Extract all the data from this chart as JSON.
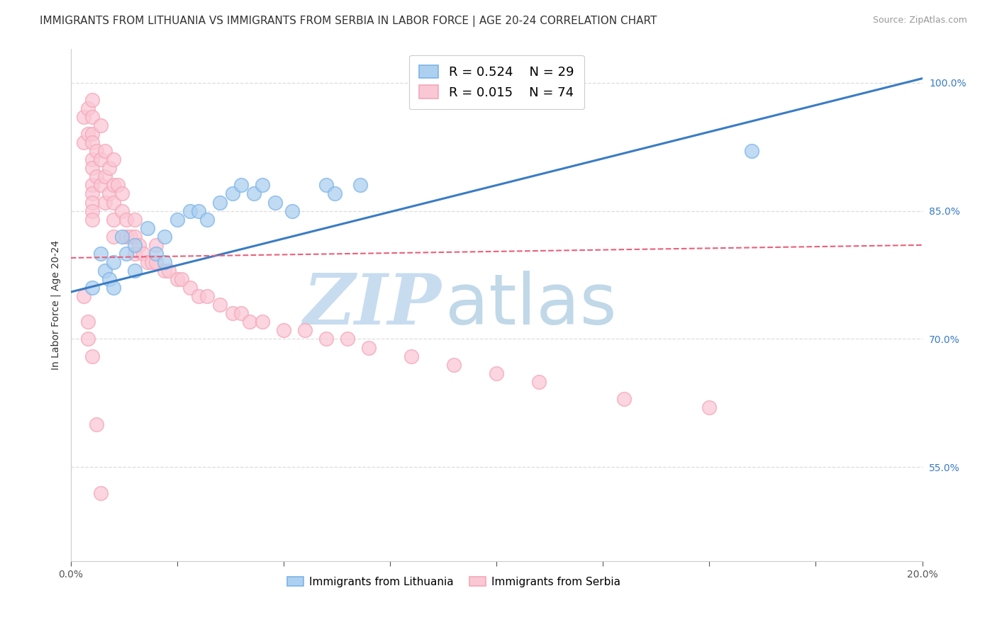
{
  "title": "IMMIGRANTS FROM LITHUANIA VS IMMIGRANTS FROM SERBIA IN LABOR FORCE | AGE 20-24 CORRELATION CHART",
  "source": "Source: ZipAtlas.com",
  "ylabel": "In Labor Force | Age 20-24",
  "xmin": 0.0,
  "xmax": 0.2,
  "ymin": 0.44,
  "ymax": 1.04,
  "yticks": [
    0.55,
    0.7,
    0.85,
    1.0
  ],
  "ytick_labels": [
    "55.0%",
    "70.0%",
    "85.0%",
    "100.0%"
  ],
  "xticks": [
    0.0,
    0.025,
    0.05,
    0.075,
    0.1,
    0.125,
    0.15,
    0.175,
    0.2
  ],
  "xtick_edge_labels": {
    "0.0": "0.0%",
    "0.20": "20.0%"
  },
  "watermark_top": "ZIP",
  "watermark_bot": "atlas",
  "legend_r_blue": "R = 0.524",
  "legend_n_blue": "N = 29",
  "legend_r_pink": "R = 0.015",
  "legend_n_pink": "N = 74",
  "blue_scatter_x": [
    0.005,
    0.007,
    0.008,
    0.009,
    0.01,
    0.01,
    0.012,
    0.013,
    0.015,
    0.015,
    0.018,
    0.02,
    0.022,
    0.022,
    0.025,
    0.028,
    0.03,
    0.032,
    0.035,
    0.038,
    0.04,
    0.043,
    0.045,
    0.048,
    0.052,
    0.06,
    0.062,
    0.068,
    0.16
  ],
  "blue_scatter_y": [
    0.76,
    0.8,
    0.78,
    0.77,
    0.79,
    0.76,
    0.82,
    0.8,
    0.81,
    0.78,
    0.83,
    0.8,
    0.82,
    0.79,
    0.84,
    0.85,
    0.85,
    0.84,
    0.86,
    0.87,
    0.88,
    0.87,
    0.88,
    0.86,
    0.85,
    0.88,
    0.87,
    0.88,
    0.92
  ],
  "pink_scatter_x": [
    0.003,
    0.003,
    0.004,
    0.004,
    0.005,
    0.005,
    0.005,
    0.005,
    0.005,
    0.005,
    0.005,
    0.005,
    0.005,
    0.005,
    0.005,
    0.006,
    0.006,
    0.007,
    0.007,
    0.007,
    0.008,
    0.008,
    0.008,
    0.009,
    0.009,
    0.01,
    0.01,
    0.01,
    0.01,
    0.01,
    0.011,
    0.012,
    0.012,
    0.013,
    0.013,
    0.014,
    0.015,
    0.015,
    0.015,
    0.016,
    0.017,
    0.018,
    0.019,
    0.02,
    0.02,
    0.022,
    0.023,
    0.025,
    0.026,
    0.028,
    0.03,
    0.032,
    0.035,
    0.038,
    0.04,
    0.042,
    0.045,
    0.05,
    0.055,
    0.06,
    0.065,
    0.07,
    0.08,
    0.09,
    0.1,
    0.11,
    0.13,
    0.15,
    0.003,
    0.004,
    0.004,
    0.005,
    0.006,
    0.007
  ],
  "pink_scatter_y": [
    0.96,
    0.93,
    0.97,
    0.94,
    0.98,
    0.96,
    0.94,
    0.93,
    0.91,
    0.9,
    0.88,
    0.87,
    0.86,
    0.85,
    0.84,
    0.92,
    0.89,
    0.95,
    0.91,
    0.88,
    0.92,
    0.89,
    0.86,
    0.9,
    0.87,
    0.91,
    0.88,
    0.86,
    0.84,
    0.82,
    0.88,
    0.87,
    0.85,
    0.84,
    0.82,
    0.82,
    0.84,
    0.82,
    0.8,
    0.81,
    0.8,
    0.79,
    0.79,
    0.81,
    0.79,
    0.78,
    0.78,
    0.77,
    0.77,
    0.76,
    0.75,
    0.75,
    0.74,
    0.73,
    0.73,
    0.72,
    0.72,
    0.71,
    0.71,
    0.7,
    0.7,
    0.69,
    0.68,
    0.67,
    0.66,
    0.65,
    0.63,
    0.62,
    0.75,
    0.72,
    0.7,
    0.68,
    0.6,
    0.52
  ],
  "blue_line_x": [
    0.0,
    0.2
  ],
  "blue_line_y": [
    0.755,
    1.005
  ],
  "pink_line_x": [
    0.0,
    0.2
  ],
  "pink_line_y": [
    0.795,
    0.81
  ],
  "blue_color": "#7CB4E8",
  "pink_color": "#F4A7B9",
  "blue_fill_color": "#ADD0F0",
  "pink_fill_color": "#FAC8D5",
  "blue_line_color": "#3A7CC4",
  "pink_line_color": "#E8607A",
  "watermark_color_zip": "#C8DCF0",
  "watermark_color_atlas": "#C0D8E8",
  "bg_color": "#FFFFFF",
  "grid_color": "#DDDDDD",
  "title_fontsize": 11,
  "axis_label_fontsize": 10,
  "tick_fontsize": 10,
  "legend_fontsize": 13
}
